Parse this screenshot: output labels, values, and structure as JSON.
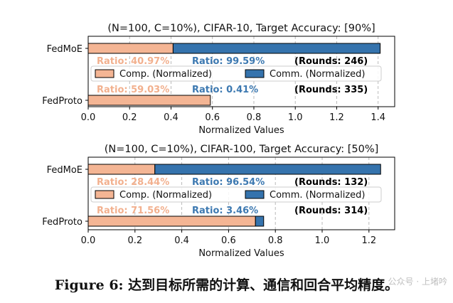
{
  "chart_data": [
    {
      "type": "bar",
      "orientation": "horizontal",
      "stacked": true,
      "title": "(N=100, C=10%), CIFAR-10, Target Accuracy: [90%]",
      "xlabel": "Normalized Values",
      "categories": [
        "FedMoE",
        "FedProto"
      ],
      "series": [
        {
          "name": "Comp. (Normalized)",
          "values": [
            0.41,
            0.59
          ]
        },
        {
          "name": "Comm. (Normalized)",
          "values": [
            1.0,
            0.0
          ]
        }
      ],
      "annotations": [
        {
          "category": "FedMoE",
          "comp_ratio": "Ratio: 40.97%",
          "comm_ratio": "Ratio: 99.59%",
          "rounds": "(Rounds: 246)"
        },
        {
          "category": "FedProto",
          "comp_ratio": "Ratio: 59.03%",
          "comm_ratio": "Ratio: 0.41%",
          "rounds": "(Rounds: 335)"
        }
      ],
      "xlim": [
        0,
        1.48
      ],
      "xticks": [
        "0.0",
        "0.2",
        "0.4",
        "0.6",
        "0.8",
        "1.0",
        "1.2",
        "1.4"
      ],
      "grid": "x-dashed",
      "legend": "center"
    },
    {
      "type": "bar",
      "orientation": "horizontal",
      "stacked": true,
      "title": "(N=100, C=10%), CIFAR-100, Target Accuracy: [50%]",
      "xlabel": "Normalized Values",
      "categories": [
        "FedMoE",
        "FedProto"
      ],
      "series": [
        {
          "name": "Comp. (Normalized)",
          "values": [
            0.285,
            0.715
          ]
        },
        {
          "name": "Comm. (Normalized)",
          "values": [
            0.965,
            0.035
          ]
        }
      ],
      "annotations": [
        {
          "category": "FedMoE",
          "comp_ratio": "Ratio: 28.44%",
          "comm_ratio": "Ratio: 96.54%",
          "rounds": "(Rounds: 132)"
        },
        {
          "category": "FedProto",
          "comp_ratio": "Ratio: 71.56%",
          "comm_ratio": "Ratio: 3.46%",
          "rounds": "(Rounds: 314)"
        }
      ],
      "xlim": [
        0,
        1.31
      ],
      "xticks": [
        "0.0",
        "0.2",
        "0.4",
        "0.6",
        "0.8",
        "1.0",
        "1.2"
      ],
      "grid": "x-dashed",
      "legend": "center"
    }
  ],
  "colors": {
    "comp": "#f4b594",
    "comm": "#3573ad",
    "comp_text": "#f2b08e",
    "comm_text": "#3d79b1"
  },
  "caption": "Figure 6: 达到目标所需的计算、通信和回合平均精度。",
  "watermark": "公众号 · 上堵吟"
}
